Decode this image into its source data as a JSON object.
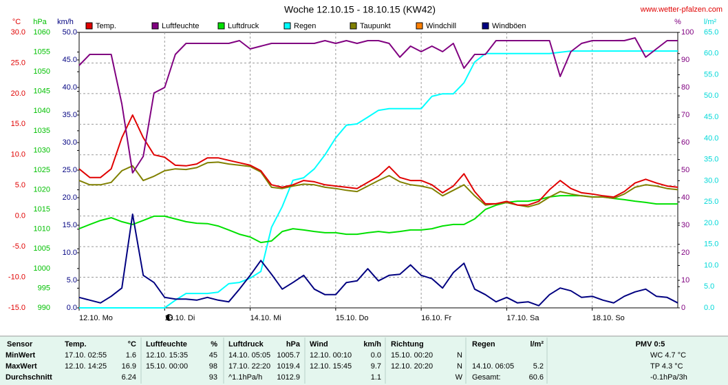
{
  "chart_data": {
    "type": "line",
    "title": "Woche 12.10.15 - 18.10.15 (KW42)",
    "source": "www.wetter-pfalzen.com",
    "x": [
      0,
      3,
      6,
      9,
      12,
      15,
      18,
      21,
      24,
      27,
      30,
      33,
      36,
      39,
      42,
      45,
      48,
      51,
      54,
      57,
      60,
      63,
      66,
      69,
      72,
      75,
      78,
      81,
      84,
      87,
      90,
      93,
      96,
      99,
      102,
      105,
      108,
      111,
      114,
      117,
      120,
      123,
      126,
      129,
      132,
      135,
      138,
      141,
      144,
      147,
      150,
      153,
      156,
      159,
      162,
      165,
      168
    ],
    "xlim": [
      0,
      168
    ],
    "xticks": [
      {
        "value": 0,
        "label": "12.10. Mo"
      },
      {
        "value": 24,
        "label": "13.10. Di"
      },
      {
        "value": 48,
        "label": "14.10. Mi"
      },
      {
        "value": 72,
        "label": "15.10. Do"
      },
      {
        "value": 96,
        "label": "16.10. Fr"
      },
      {
        "value": 120,
        "label": "17.10. Sa"
      },
      {
        "value": 144,
        "label": "18.10. So"
      }
    ],
    "grid": true,
    "axes": [
      {
        "unit": "°C",
        "color": "#e00000",
        "side": "left",
        "lim": [
          -15,
          30
        ],
        "ticks": [
          {
            "value": -15,
            "label": "-15.0"
          },
          {
            "value": -10,
            "label": "-10.0"
          },
          {
            "value": -5,
            "label": "-5.0"
          },
          {
            "value": 0,
            "label": "0.0"
          },
          {
            "value": 5,
            "label": "5.0"
          },
          {
            "value": 10,
            "label": "10.0"
          },
          {
            "value": 15,
            "label": "15.0"
          },
          {
            "value": 20,
            "label": "20.0"
          },
          {
            "value": 25,
            "label": "25.0"
          },
          {
            "value": 30,
            "label": "30.0"
          }
        ]
      },
      {
        "unit": "hPa",
        "color": "#00c000",
        "side": "left",
        "lim": [
          990,
          1060
        ],
        "ticks": [
          990,
          995,
          1000,
          1005,
          1010,
          1015,
          1020,
          1025,
          1030,
          1035,
          1040,
          1045,
          1050,
          1055,
          1060
        ]
      },
      {
        "unit": "km/h",
        "color": "#000080",
        "side": "left",
        "lim": [
          0,
          50
        ],
        "ticks": [
          {
            "value": 0,
            "label": "0.0"
          },
          {
            "value": 5,
            "label": "5.0"
          },
          {
            "value": 10,
            "label": "10.0"
          },
          {
            "value": 15,
            "label": "15.0"
          },
          {
            "value": 20,
            "label": "20.0"
          },
          {
            "value": 25,
            "label": "25.0"
          },
          {
            "value": 30,
            "label": "30.0"
          },
          {
            "value": 35,
            "label": "35.0"
          },
          {
            "value": 40,
            "label": "40.0"
          },
          {
            "value": 45,
            "label": "45.0"
          },
          {
            "value": 50,
            "label": "50.0"
          }
        ]
      },
      {
        "unit": "%",
        "color": "#800080",
        "side": "right",
        "lim": [
          0,
          100
        ],
        "ticks": [
          0,
          10,
          20,
          30,
          40,
          50,
          60,
          70,
          80,
          90,
          100
        ]
      },
      {
        "unit": "l/m²",
        "color": "#00d8d8",
        "side": "right",
        "lim": [
          0,
          65
        ],
        "ticks": [
          {
            "value": 0,
            "label": "0.0"
          },
          {
            "value": 5,
            "label": "5.0"
          },
          {
            "value": 10,
            "label": "10.0"
          },
          {
            "value": 15,
            "label": "15.0"
          },
          {
            "value": 20,
            "label": "20.0"
          },
          {
            "value": 25,
            "label": "25.0"
          },
          {
            "value": 30,
            "label": "30.0"
          },
          {
            "value": 35,
            "label": "35.0"
          },
          {
            "value": 40,
            "label": "40.0"
          },
          {
            "value": 45,
            "label": "45.0"
          },
          {
            "value": 50,
            "label": "50.0"
          },
          {
            "value": 55,
            "label": "55.0"
          },
          {
            "value": 60,
            "label": "60.0"
          },
          {
            "value": 65,
            "label": "65.0"
          }
        ]
      }
    ],
    "series": [
      {
        "name": "Temp.",
        "color": "#e00000",
        "axis": 0,
        "values": [
          7.7,
          6.3,
          6.3,
          7.7,
          12.8,
          16.5,
          12.8,
          10.0,
          9.6,
          8.3,
          8.2,
          8.5,
          9.5,
          9.5,
          9.1,
          8.7,
          8.3,
          7.4,
          5.1,
          4.7,
          5.1,
          5.8,
          5.6,
          5.1,
          4.9,
          4.7,
          4.5,
          5.5,
          6.5,
          8.1,
          6.3,
          5.8,
          5.8,
          5.1,
          3.8,
          4.9,
          6.9,
          4.0,
          2.0,
          2.0,
          2.4,
          1.8,
          1.8,
          2.4,
          4.3,
          5.8,
          4.5,
          3.8,
          3.6,
          3.3,
          3.1,
          4.0,
          5.4,
          6.0,
          5.4,
          4.9,
          4.7
        ]
      },
      {
        "name": "Luftfeuchte",
        "color": "#800080",
        "axis": 3,
        "values": [
          88,
          92,
          92,
          92,
          74,
          49,
          55,
          78,
          80,
          92,
          96,
          96,
          96,
          96,
          96,
          97,
          94,
          95,
          96,
          96,
          96,
          96,
          96,
          97,
          96,
          97,
          96,
          97,
          97,
          96,
          91,
          95,
          93,
          95,
          93,
          96,
          87,
          92,
          92,
          97,
          97,
          97,
          97,
          97,
          97,
          84,
          93,
          96,
          97,
          97,
          97,
          97,
          98,
          91,
          94,
          97,
          97
        ]
      },
      {
        "name": "Luftdruck",
        "color": "#00e000",
        "axis": 1,
        "values": [
          1010.1,
          1011.2,
          1012.2,
          1012.9,
          1011.9,
          1011.2,
          1012.2,
          1013.3,
          1013.3,
          1012.6,
          1011.9,
          1011.5,
          1011.4,
          1010.8,
          1009.8,
          1008.7,
          1008.0,
          1006.6,
          1007.0,
          1009.4,
          1010.1,
          1009.8,
          1009.4,
          1009.1,
          1009.1,
          1008.7,
          1008.7,
          1009.1,
          1009.4,
          1009.1,
          1009.4,
          1009.8,
          1009.8,
          1010.1,
          1010.8,
          1011.2,
          1011.2,
          1012.6,
          1015.0,
          1016.1,
          1016.8,
          1017.1,
          1017.1,
          1017.5,
          1018.2,
          1018.5,
          1018.5,
          1018.5,
          1018.2,
          1018.2,
          1017.8,
          1017.5,
          1017.1,
          1016.8,
          1016.4,
          1016.4,
          1016.4
        ]
      },
      {
        "name": "Regen",
        "color": "#00ffff",
        "axis": 4,
        "values": [
          0,
          0,
          0,
          0,
          0,
          0,
          0,
          0,
          0,
          1.8,
          3.4,
          3.4,
          3.4,
          3.7,
          5.7,
          6.0,
          7.0,
          8.6,
          19.0,
          23.9,
          30.1,
          30.7,
          32.8,
          36.1,
          40.1,
          43.1,
          43.4,
          45.0,
          46.6,
          47.0,
          47.0,
          47.0,
          47.0,
          49.9,
          50.5,
          50.5,
          53.1,
          58.0,
          60.0,
          60.0,
          60.0,
          60.0,
          60.0,
          60.0,
          60.0,
          60.3,
          60.6,
          60.6,
          60.6,
          60.6,
          60.6,
          60.6,
          60.6,
          60.6,
          60.6,
          60.6,
          60.6
        ]
      },
      {
        "name": "Taupunkt",
        "color": "#808000",
        "axis": 0,
        "values": [
          5.8,
          5.1,
          5.1,
          5.5,
          7.4,
          8.2,
          5.8,
          6.5,
          7.4,
          7.7,
          7.6,
          7.9,
          8.7,
          8.8,
          8.5,
          8.3,
          8.1,
          7.2,
          4.7,
          4.5,
          4.9,
          5.2,
          5.1,
          4.7,
          4.5,
          4.2,
          4.0,
          4.9,
          5.8,
          6.6,
          5.6,
          5.1,
          4.9,
          4.5,
          3.3,
          4.2,
          5.1,
          3.3,
          1.8,
          2.0,
          2.2,
          1.8,
          1.5,
          2.0,
          3.1,
          4.0,
          3.6,
          3.3,
          3.1,
          3.1,
          2.9,
          3.6,
          4.7,
          5.1,
          4.9,
          4.5,
          4.3
        ]
      },
      {
        "name": "Windchill",
        "color": "#ff8000",
        "axis": 0,
        "values": [
          null,
          null,
          null,
          null,
          null,
          null,
          null,
          null,
          null,
          null,
          null,
          null,
          null,
          null,
          null,
          null,
          null,
          null,
          null,
          null,
          null,
          null,
          null,
          null,
          null,
          null,
          null,
          null,
          null,
          null,
          null,
          null,
          null,
          null,
          null,
          null,
          null,
          null,
          null,
          null,
          null,
          null,
          null,
          null,
          null,
          null,
          null,
          null,
          null,
          null,
          null,
          null,
          null,
          null,
          null,
          null,
          null
        ]
      },
      {
        "name": "Windböen",
        "color": "#000080",
        "axis": 2,
        "values": [
          1.9,
          1.4,
          0.9,
          2.1,
          3.6,
          17.0,
          5.9,
          4.6,
          1.9,
          1.6,
          1.6,
          1.4,
          1.9,
          1.4,
          1.1,
          3.4,
          5.9,
          8.6,
          6.1,
          3.4,
          4.6,
          5.9,
          3.4,
          2.4,
          2.4,
          4.6,
          4.9,
          7.1,
          4.9,
          5.9,
          6.1,
          7.8,
          5.9,
          5.3,
          3.6,
          6.4,
          8.1,
          3.4,
          2.4,
          1.1,
          1.9,
          0.9,
          1.1,
          0.4,
          2.4,
          3.6,
          3.1,
          1.9,
          2.1,
          1.4,
          0.9,
          2.1,
          2.9,
          3.4,
          2.1,
          1.9,
          0.9
        ]
      }
    ]
  },
  "table": {
    "columns": [
      {
        "name": "Sensor"
      },
      {
        "name": "Temp.",
        "unit": "°C"
      },
      {
        "name": "Luftfeuchte",
        "unit": "%"
      },
      {
        "name": "Luftdruck",
        "unit": "hPa"
      },
      {
        "name": "Wind",
        "unit": "km/h"
      },
      {
        "name": "Richtung"
      },
      {
        "name": "Regen",
        "unit": "l/m²"
      },
      {
        "name": "PMV 0:5"
      }
    ],
    "rows": [
      {
        "label": "MinWert",
        "cells": [
          [
            "17.10. 02:55",
            "1.6"
          ],
          [
            "12.10. 15:35",
            "45"
          ],
          [
            "14.10. 05:05",
            "1005.7"
          ],
          [
            "12.10. 00:10",
            "0.0"
          ],
          [
            "15.10. 00:20",
            "N"
          ],
          null,
          [
            "WC 4.7 °C"
          ]
        ]
      },
      {
        "label": "MaxWert",
        "cells": [
          [
            "12.10. 14:25",
            "16.9"
          ],
          [
            "15.10. 00:00",
            "98"
          ],
          [
            "17.10. 22:20",
            "1019.4"
          ],
          [
            "12.10. 15:45",
            "9.7"
          ],
          [
            "12.10. 20:20",
            "N"
          ],
          [
            "14.10. 06:05",
            "5.2"
          ],
          [
            "TP 4.3 °C"
          ]
        ]
      },
      {
        "label": "Durchschnitt",
        "cells": [
          [
            null,
            "6.24"
          ],
          [
            null,
            "93"
          ],
          [
            "^1.1hPa/h",
            "1012.9"
          ],
          [
            null,
            "1.1"
          ],
          [
            null,
            "W"
          ],
          [
            "Gesamt:",
            "60.6"
          ],
          [
            "-0.1hPa/3h"
          ]
        ]
      }
    ]
  }
}
